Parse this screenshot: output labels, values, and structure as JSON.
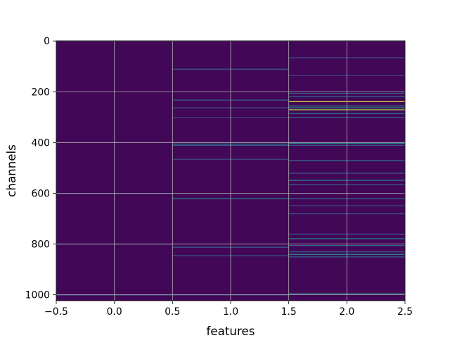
{
  "chart_data": {
    "type": "heatmap",
    "title": "",
    "xlabel": "features",
    "ylabel": "channels",
    "x_columns": [
      0,
      1,
      2
    ],
    "xlim": [
      -0.5,
      2.5
    ],
    "ylim": [
      1023.5,
      -0.5
    ],
    "y_inverted": true,
    "n_rows": 1024,
    "xticks": [
      -0.5,
      0.0,
      0.5,
      1.0,
      1.5,
      2.0,
      2.5
    ],
    "xtick_labels": [
      "−0.5",
      "0.0",
      "0.5",
      "1.0",
      "1.5",
      "2.0",
      "2.5"
    ],
    "yticks": [
      0,
      200,
      400,
      600,
      800,
      1000
    ],
    "ytick_labels": [
      "0",
      "200",
      "400",
      "600",
      "800",
      "1000"
    ],
    "grid": true,
    "colormap": "viridis",
    "value_range": [
      0,
      1
    ],
    "background_value": 0.02,
    "highlights": {
      "0": [
        [
          600,
          0.2
        ],
        [
          800,
          0.18
        ],
        [
          1000,
          0.3
        ]
      ],
      "1": [
        [
          110,
          0.3
        ],
        [
          232,
          0.3
        ],
        [
          262,
          0.25
        ],
        [
          300,
          0.2
        ],
        [
          405,
          0.45
        ],
        [
          410,
          0.3
        ],
        [
          465,
          0.25
        ],
        [
          620,
          0.45
        ],
        [
          812,
          0.3
        ],
        [
          845,
          0.3
        ],
        [
          1000,
          0.25
        ]
      ],
      "2": [
        [
          65,
          0.25
        ],
        [
          135,
          0.2
        ],
        [
          205,
          0.3
        ],
        [
          218,
          0.35
        ],
        [
          238,
          0.95
        ],
        [
          255,
          0.55
        ],
        [
          262,
          0.5
        ],
        [
          270,
          0.88
        ],
        [
          285,
          0.4
        ],
        [
          300,
          0.3
        ],
        [
          402,
          0.5
        ],
        [
          410,
          0.3
        ],
        [
          470,
          0.4
        ],
        [
          520,
          0.3
        ],
        [
          548,
          0.45
        ],
        [
          565,
          0.3
        ],
        [
          620,
          0.35
        ],
        [
          648,
          0.25
        ],
        [
          680,
          0.25
        ],
        [
          760,
          0.3
        ],
        [
          778,
          0.45
        ],
        [
          805,
          0.35
        ],
        [
          830,
          0.3
        ],
        [
          840,
          0.5
        ],
        [
          850,
          0.35
        ],
        [
          995,
          0.45
        ]
      ]
    }
  }
}
